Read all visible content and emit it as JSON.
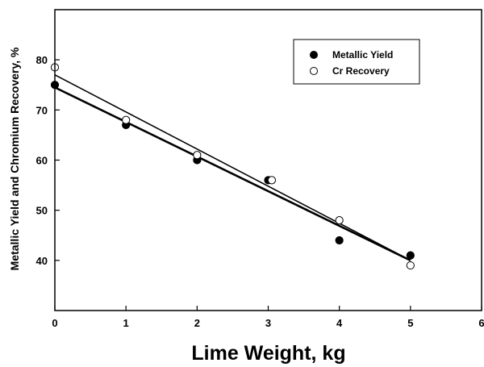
{
  "chart_data": {
    "type": "scatter",
    "xlabel": "Lime Weight, kg",
    "ylabel": "Metallic Yield and Chromium Recovery, %",
    "xlim": [
      0,
      6
    ],
    "ylim": [
      30,
      90
    ],
    "xticks": [
      0,
      1,
      2,
      3,
      4,
      5,
      6
    ],
    "yticks": [
      40,
      50,
      60,
      70,
      80
    ],
    "legend_position": "top-right",
    "grid": false,
    "series": [
      {
        "name": "Metallic Yield",
        "marker": "filled-circle",
        "color": "#000000",
        "x": [
          0,
          1,
          2,
          3,
          4,
          5
        ],
        "y": [
          75,
          67,
          60,
          56,
          44,
          41
        ],
        "fit": {
          "type": "linear",
          "x": [
            0,
            5
          ],
          "y": [
            74.5,
            40
          ]
        }
      },
      {
        "name": "Cr Recovery",
        "marker": "open-circle",
        "color": "#000000",
        "x": [
          0,
          1,
          2,
          3.05,
          4,
          5
        ],
        "y": [
          78.5,
          68,
          61,
          56,
          48,
          39
        ],
        "fit": {
          "type": "linear",
          "x": [
            0,
            5
          ],
          "y": [
            77,
            40
          ]
        }
      }
    ]
  }
}
